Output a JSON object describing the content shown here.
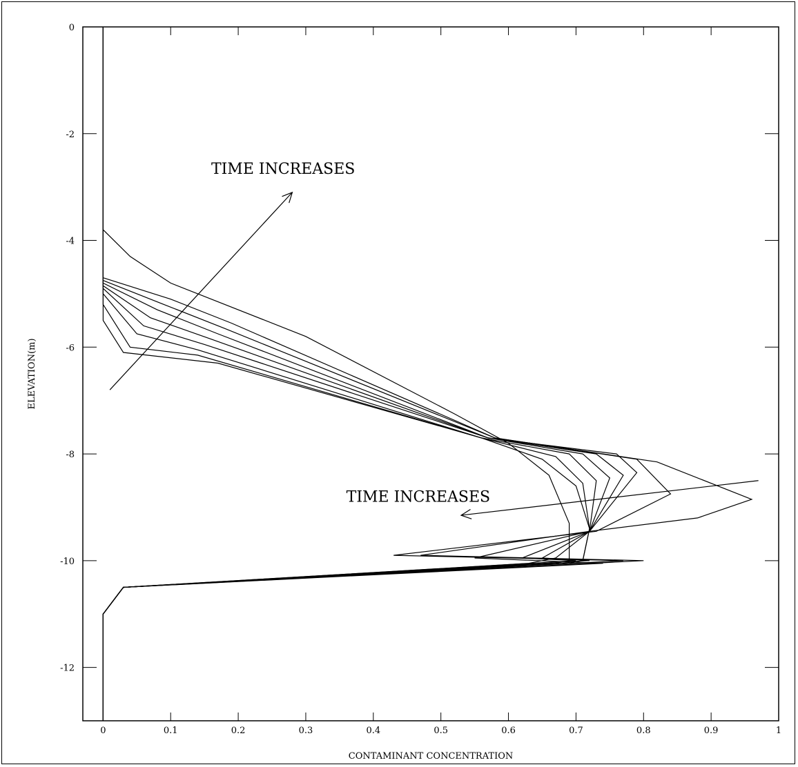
{
  "chart_data": {
    "type": "line",
    "title": "",
    "xlabel": "CONTAMINANT CONCENTRATION",
    "ylabel": "ELEVATION(m)",
    "xlim": [
      -0.03,
      1.0
    ],
    "ylim": [
      -13,
      0
    ],
    "x_ticks": [
      0,
      0.1,
      0.2,
      0.3,
      0.4,
      0.5,
      0.6,
      0.7,
      0.8,
      0.9,
      1
    ],
    "x_tick_labels": [
      "0",
      "0.1",
      "0.2",
      "0.3",
      "0.4",
      "0.5",
      "0.6",
      "0.7",
      "0.8",
      "0.9",
      "1"
    ],
    "y_ticks": [
      0,
      -2,
      -4,
      -6,
      -8,
      -10,
      -12
    ],
    "y_tick_labels": [
      "0",
      "-2",
      "-4",
      "-6",
      "-8",
      "-10",
      "-12"
    ],
    "grid": false,
    "legend": "none",
    "series": [
      {
        "points": [
          [
            0,
            0
          ],
          [
            0,
            -3.8
          ],
          [
            0.04,
            -4.3
          ],
          [
            0.1,
            -4.8
          ],
          [
            0.3,
            -5.8
          ],
          [
            0.52,
            -7.25
          ],
          [
            0.6,
            -7.8
          ],
          [
            0.66,
            -8.4
          ],
          [
            0.69,
            -9.3
          ],
          [
            0.69,
            -10.0
          ],
          [
            0.67,
            -10.05
          ],
          [
            0.03,
            -10.5
          ],
          [
            0,
            -11
          ],
          [
            0,
            -13
          ]
        ]
      },
      {
        "points": [
          [
            0,
            0
          ],
          [
            0,
            -5.5
          ],
          [
            0.03,
            -6.1
          ],
          [
            0.17,
            -6.3
          ],
          [
            0.56,
            -7.7
          ],
          [
            0.65,
            -8.1
          ],
          [
            0.7,
            -8.6
          ],
          [
            0.72,
            -9.4
          ],
          [
            0.71,
            -10.0
          ],
          [
            0.69,
            -10.05
          ],
          [
            0.03,
            -10.5
          ],
          [
            0,
            -11
          ],
          [
            0,
            -13
          ]
        ]
      },
      {
        "points": [
          [
            0,
            0
          ],
          [
            0,
            -5.2
          ],
          [
            0.04,
            -6.0
          ],
          [
            0.14,
            -6.15
          ],
          [
            0.56,
            -7.7
          ],
          [
            0.67,
            -8.05
          ],
          [
            0.71,
            -8.55
          ],
          [
            0.72,
            -9.4
          ],
          [
            0.71,
            -10.0
          ],
          [
            0.68,
            -10.05
          ],
          [
            0.03,
            -10.5
          ],
          [
            0,
            -11
          ],
          [
            0,
            -13
          ]
        ]
      },
      {
        "points": [
          [
            0,
            0
          ],
          [
            0,
            -5.0
          ],
          [
            0.05,
            -5.75
          ],
          [
            0.14,
            -6.05
          ],
          [
            0.56,
            -7.7
          ],
          [
            0.69,
            -8.0
          ],
          [
            0.73,
            -8.5
          ],
          [
            0.72,
            -9.45
          ],
          [
            0.67,
            -9.95
          ],
          [
            0.63,
            -10.05
          ],
          [
            0.03,
            -10.5
          ],
          [
            0,
            -11
          ],
          [
            0,
            -13
          ]
        ]
      },
      {
        "points": [
          [
            0,
            0
          ],
          [
            0,
            -4.9
          ],
          [
            0.06,
            -5.6
          ],
          [
            0.15,
            -5.95
          ],
          [
            0.57,
            -7.7
          ],
          [
            0.71,
            -8.0
          ],
          [
            0.75,
            -8.45
          ],
          [
            0.72,
            -9.45
          ],
          [
            0.62,
            -9.95
          ],
          [
            0.7,
            -10.0
          ],
          [
            0.03,
            -10.5
          ],
          [
            0,
            -11
          ],
          [
            0,
            -13
          ]
        ]
      },
      {
        "points": [
          [
            0,
            0
          ],
          [
            0,
            -4.85
          ],
          [
            0.07,
            -5.45
          ],
          [
            0.16,
            -5.85
          ],
          [
            0.57,
            -7.7
          ],
          [
            0.73,
            -8.0
          ],
          [
            0.77,
            -8.4
          ],
          [
            0.72,
            -9.45
          ],
          [
            0.65,
            -9.95
          ],
          [
            0.72,
            -10.0
          ],
          [
            0.03,
            -10.5
          ],
          [
            0,
            -11
          ],
          [
            0,
            -13
          ]
        ]
      },
      {
        "points": [
          [
            0,
            0
          ],
          [
            0,
            -4.8
          ],
          [
            0.08,
            -5.3
          ],
          [
            0.17,
            -5.75
          ],
          [
            0.57,
            -7.7
          ],
          [
            0.76,
            -8.0
          ],
          [
            0.79,
            -8.35
          ],
          [
            0.72,
            -9.45
          ],
          [
            0.55,
            -9.95
          ],
          [
            0.74,
            -10.05
          ],
          [
            0.03,
            -10.5
          ],
          [
            0,
            -11
          ],
          [
            0,
            -13
          ]
        ]
      },
      {
        "points": [
          [
            0,
            0
          ],
          [
            0,
            -4.75
          ],
          [
            0.09,
            -5.2
          ],
          [
            0.18,
            -5.65
          ],
          [
            0.58,
            -7.7
          ],
          [
            0.79,
            -8.1
          ],
          [
            0.84,
            -8.75
          ],
          [
            0.73,
            -9.45
          ],
          [
            0.43,
            -9.9
          ],
          [
            0.77,
            -10.0
          ],
          [
            0.03,
            -10.5
          ],
          [
            0,
            -11
          ],
          [
            0,
            -13
          ]
        ]
      },
      {
        "points": [
          [
            0,
            0
          ],
          [
            0,
            -4.7
          ],
          [
            0.1,
            -5.1
          ],
          [
            0.19,
            -5.55
          ],
          [
            0.58,
            -7.7
          ],
          [
            0.82,
            -8.15
          ],
          [
            0.96,
            -8.85
          ],
          [
            0.88,
            -9.2
          ],
          [
            0.72,
            -9.45
          ],
          [
            0.47,
            -9.9
          ],
          [
            0.8,
            -10.0
          ],
          [
            0.03,
            -10.5
          ],
          [
            0,
            -11
          ],
          [
            0,
            -13
          ]
        ]
      }
    ],
    "annotations": [
      {
        "text": "TIME INCREASES",
        "x": 0.16,
        "y": -2.75,
        "arrow_from": [
          0.01,
          -6.8
        ],
        "arrow_to": [
          0.28,
          -3.1
        ]
      },
      {
        "text": "TIME INCREASES",
        "x": 0.36,
        "y": -8.9,
        "arrow_from": [
          0.97,
          -8.5
        ],
        "arrow_to": [
          0.53,
          -9.15
        ]
      }
    ]
  }
}
